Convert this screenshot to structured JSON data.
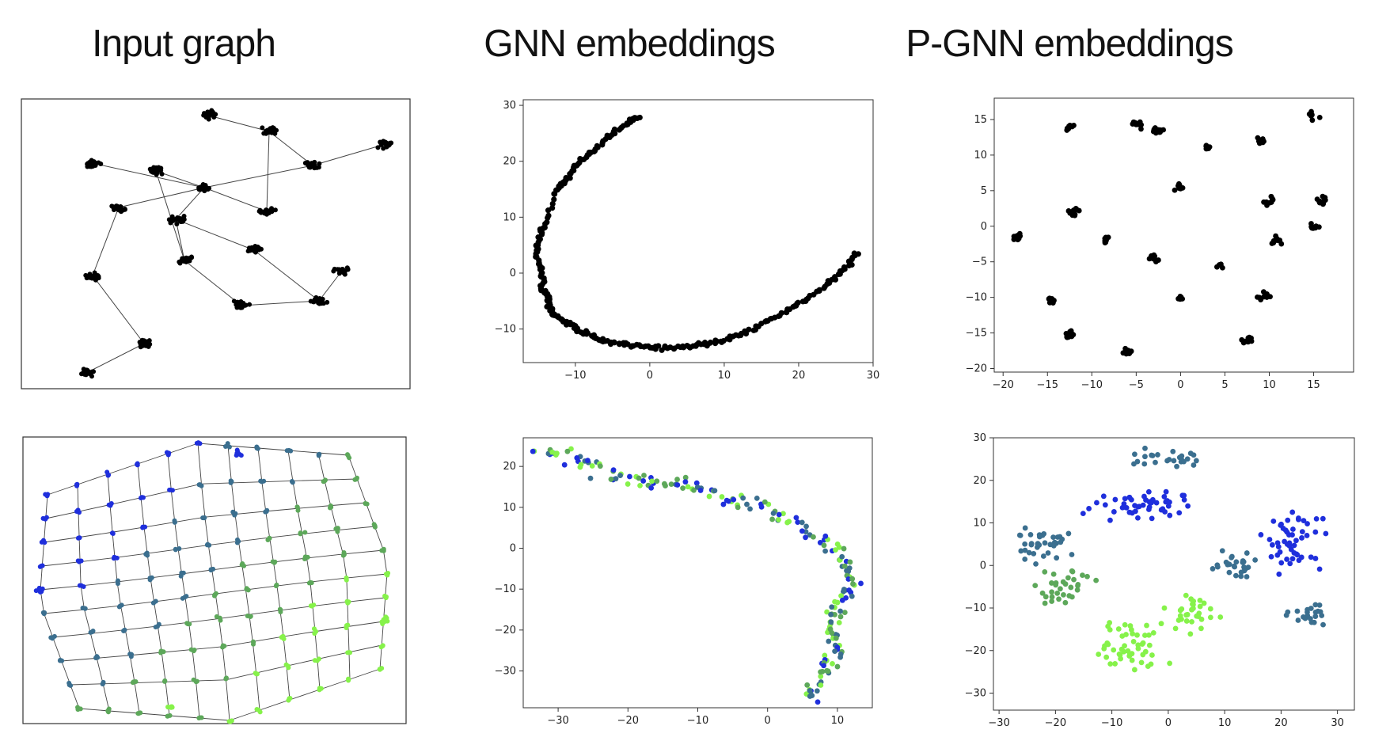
{
  "titles": {
    "col1": "Input graph",
    "col2": "GNN embeddings",
    "col3": "P-GNN embeddings"
  },
  "colors": {
    "blue": "#1f2fdc",
    "teal": "#3b6f8f",
    "green": "#5da85a",
    "lime": "#86f24a",
    "black": "#000000"
  },
  "chart_data": [
    {
      "id": "input-graph-top",
      "type": "scatter",
      "title": "",
      "note": "graph drawing without axes",
      "clusters": [
        [
          264,
          146
        ],
        [
          340,
          166
        ],
        [
          487,
          182
        ],
        [
          395,
          209
        ],
        [
          116,
          206
        ],
        [
          197,
          216
        ],
        [
          258,
          237
        ],
        [
          150,
          262
        ],
        [
          222,
          277
        ],
        [
          337,
          267
        ],
        [
          321,
          316
        ],
        [
          233,
          329
        ],
        [
          432,
          342
        ],
        [
          117,
          348
        ],
        [
          403,
          380
        ],
        [
          305,
          386
        ],
        [
          182,
          434
        ],
        [
          111,
          470
        ]
      ],
      "edges": [
        [
          [
            264,
            146
          ],
          [
            340,
            166
          ]
        ],
        [
          [
            340,
            166
          ],
          [
            395,
            209
          ]
        ],
        [
          [
            340,
            166
          ],
          [
            337,
            267
          ]
        ],
        [
          [
            395,
            209
          ],
          [
            487,
            182
          ]
        ],
        [
          [
            395,
            209
          ],
          [
            258,
            237
          ]
        ],
        [
          [
            258,
            237
          ],
          [
            197,
            216
          ]
        ],
        [
          [
            258,
            237
          ],
          [
            116,
            206
          ]
        ],
        [
          [
            258,
            237
          ],
          [
            150,
            262
          ]
        ],
        [
          [
            258,
            237
          ],
          [
            222,
            277
          ]
        ],
        [
          [
            258,
            237
          ],
          [
            337,
            267
          ]
        ],
        [
          [
            222,
            277
          ],
          [
            233,
            329
          ]
        ],
        [
          [
            222,
            277
          ],
          [
            321,
            316
          ]
        ],
        [
          [
            321,
            316
          ],
          [
            403,
            380
          ]
        ],
        [
          [
            403,
            380
          ],
          [
            432,
            342
          ]
        ],
        [
          [
            403,
            380
          ],
          [
            305,
            386
          ]
        ],
        [
          [
            305,
            386
          ],
          [
            233,
            329
          ]
        ],
        [
          [
            150,
            262
          ],
          [
            117,
            348
          ]
        ],
        [
          [
            117,
            348
          ],
          [
            182,
            434
          ]
        ],
        [
          [
            182,
            434
          ],
          [
            111,
            470
          ]
        ],
        [
          [
            197,
            216
          ],
          [
            233,
            329
          ]
        ]
      ]
    },
    {
      "id": "gnn-top",
      "type": "scatter",
      "xlim": [
        -17,
        30
      ],
      "ylim": [
        -16,
        31
      ],
      "x_ticks": [
        -10,
        0,
        10,
        20,
        30
      ],
      "y_ticks": [
        -10,
        0,
        10,
        20,
        30
      ],
      "curve_points": [
        [
          -1.5,
          28
        ],
        [
          -3,
          27
        ],
        [
          -4.5,
          25.5
        ],
        [
          -6,
          24
        ],
        [
          -7.5,
          22
        ],
        [
          -9,
          20.5
        ],
        [
          -10,
          19
        ],
        [
          -11,
          17
        ],
        [
          -12,
          16
        ],
        [
          -12.8,
          14
        ],
        [
          -14,
          9
        ],
        [
          -14.8,
          7
        ],
        [
          -15,
          5
        ],
        [
          -15.2,
          3
        ],
        [
          -14.7,
          1
        ],
        [
          -14.4,
          -1
        ],
        [
          -14.6,
          -3
        ],
        [
          -13.8,
          -4
        ],
        [
          -13.6,
          -6
        ],
        [
          -12.8,
          -7.5
        ],
        [
          -11.5,
          -8.5
        ],
        [
          -10.5,
          -9.5
        ],
        [
          -9,
          -10.5
        ],
        [
          -7.5,
          -11.5
        ],
        [
          -6,
          -12.2
        ],
        [
          -4,
          -12.6
        ],
        [
          -2,
          -13
        ],
        [
          0,
          -13.2
        ],
        [
          2,
          -13.4
        ],
        [
          4,
          -13.3
        ],
        [
          6,
          -13
        ],
        [
          8,
          -12.6
        ],
        [
          10,
          -12
        ],
        [
          12,
          -11
        ],
        [
          14,
          -9.8
        ],
        [
          16,
          -8.5
        ],
        [
          18,
          -7
        ],
        [
          20,
          -5.5
        ],
        [
          22,
          -3.8
        ],
        [
          24,
          -1.8
        ],
        [
          25.5,
          0
        ],
        [
          27,
          2
        ],
        [
          28,
          3.5
        ]
      ]
    },
    {
      "id": "pgnn-top",
      "type": "scatter",
      "xlim": [
        -21,
        19.5
      ],
      "ylim": [
        -20.5,
        18
      ],
      "x_ticks": [
        -20,
        -15,
        -10,
        -5,
        0,
        5,
        10,
        15
      ],
      "y_ticks": [
        -20,
        -15,
        -10,
        -5,
        0,
        5,
        10,
        15
      ],
      "clusters": [
        [
          -12.5,
          14
        ],
        [
          -5,
          14.2
        ],
        [
          -2.5,
          13.5
        ],
        [
          3,
          11
        ],
        [
          9,
          12
        ],
        [
          15,
          15.5
        ],
        [
          0,
          5.5
        ],
        [
          -12,
          2
        ],
        [
          10,
          3.5
        ],
        [
          16,
          3.5
        ],
        [
          15,
          0
        ],
        [
          -18.5,
          -1.5
        ],
        [
          -8.5,
          -2
        ],
        [
          -3,
          -4.5
        ],
        [
          4.5,
          -5.5
        ],
        [
          -14.5,
          -10.5
        ],
        [
          0,
          -10.3
        ],
        [
          9.5,
          -9.8
        ],
        [
          -12.5,
          -15.2
        ],
        [
          -6,
          -17.8
        ],
        [
          7.5,
          -16
        ],
        [
          10.8,
          -2
        ]
      ]
    },
    {
      "id": "input-graph-bottom",
      "type": "scatter",
      "title": "",
      "note": "mesh graph drawing without axes, colored blue to lime",
      "grid_rows": 10,
      "grid_cols": 11
    },
    {
      "id": "gnn-bottom",
      "type": "scatter",
      "xlim": [
        -35,
        15
      ],
      "ylim": [
        -39,
        27
      ],
      "x_ticks": [
        -30,
        -20,
        -10,
        0,
        10
      ],
      "y_ticks": [
        -30,
        -20,
        -10,
        0,
        10,
        20
      ],
      "curve_points": [
        [
          -33,
          24
        ],
        [
          -31,
          23
        ],
        [
          -29,
          22.5
        ],
        [
          -27,
          21
        ],
        [
          -25,
          20
        ],
        [
          -23,
          18
        ],
        [
          -21,
          17
        ],
        [
          -19,
          17
        ],
        [
          -17,
          16
        ],
        [
          -15,
          16
        ],
        [
          -13,
          15.5
        ],
        [
          -11,
          15
        ],
        [
          -9,
          14.5
        ],
        [
          -7,
          13
        ],
        [
          -5,
          12
        ],
        [
          -3,
          11
        ],
        [
          -1,
          10
        ],
        [
          1,
          9
        ],
        [
          3,
          7
        ],
        [
          5,
          5
        ],
        [
          7,
          3
        ],
        [
          8.5,
          1
        ],
        [
          10,
          -1
        ],
        [
          11,
          -3
        ],
        [
          12,
          -5
        ],
        [
          12.5,
          -7
        ],
        [
          12,
          -9
        ],
        [
          11,
          -11
        ],
        [
          10,
          -13
        ],
        [
          9.5,
          -15
        ],
        [
          9,
          -17
        ],
        [
          9,
          -19
        ],
        [
          9.5,
          -21
        ],
        [
          10,
          -23
        ],
        [
          9.5,
          -25
        ],
        [
          9,
          -27
        ],
        [
          8.5,
          -29
        ],
        [
          8,
          -31
        ],
        [
          7,
          -33
        ],
        [
          6,
          -35
        ],
        [
          6.5,
          -36
        ]
      ]
    },
    {
      "id": "pgnn-bottom",
      "type": "scatter",
      "xlim": [
        -31,
        33
      ],
      "ylim": [
        -34,
        30
      ],
      "x_ticks": [
        -30,
        -20,
        -10,
        0,
        10,
        20,
        30
      ],
      "y_ticks": [
        -30,
        -20,
        -10,
        0,
        10,
        20,
        30
      ],
      "regions": [
        {
          "color": "blue",
          "center": [
            -5,
            14
          ],
          "spread": [
            12,
            6
          ]
        },
        {
          "color": "blue",
          "center": [
            22,
            5
          ],
          "spread": [
            8,
            9
          ]
        },
        {
          "color": "teal",
          "center": [
            0,
            25
          ],
          "spread": [
            9,
            3
          ]
        },
        {
          "color": "teal",
          "center": [
            -22,
            5
          ],
          "spread": [
            8,
            6
          ]
        },
        {
          "color": "teal",
          "center": [
            12,
            0
          ],
          "spread": [
            6,
            5
          ]
        },
        {
          "color": "teal",
          "center": [
            25,
            -12
          ],
          "spread": [
            5,
            4
          ]
        },
        {
          "color": "green",
          "center": [
            -18,
            -5
          ],
          "spread": [
            8,
            5
          ]
        },
        {
          "color": "lime",
          "center": [
            -7,
            -18
          ],
          "spread": [
            9,
            8
          ]
        },
        {
          "color": "lime",
          "center": [
            5,
            -12
          ],
          "spread": [
            6,
            6
          ]
        }
      ]
    }
  ]
}
